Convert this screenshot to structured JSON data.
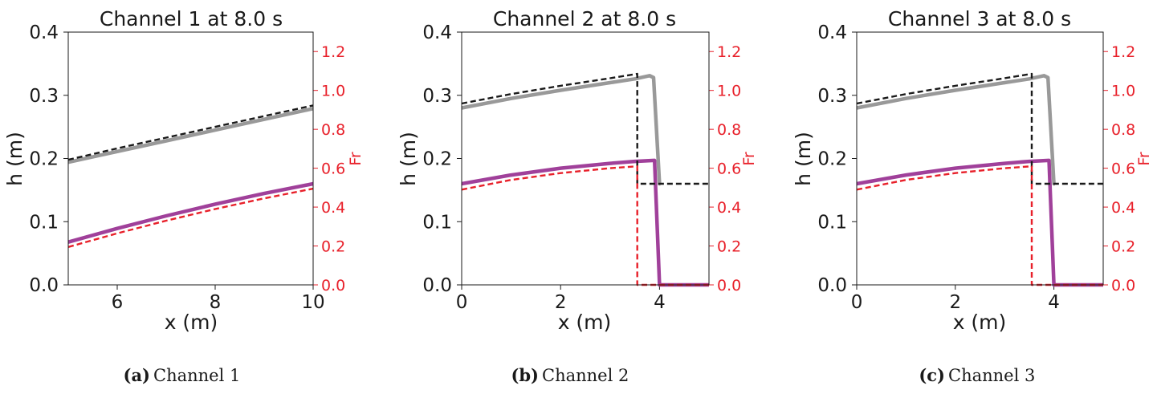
{
  "colors": {
    "h_sim": "#999999",
    "h_exact": "#1a1a1a",
    "fr_sim": "#a0409a",
    "fr_exact": "#e8202a",
    "right_axis": "#e8202a"
  },
  "chart_data": [
    {
      "type": "line",
      "title": "Channel 1 at 8.0 s",
      "xlabel": "x (m)",
      "ylabel": "h (m)",
      "y2label": "Fr",
      "xlim": [
        5,
        10
      ],
      "ylim": [
        0,
        0.4
      ],
      "y2lim": [
        0,
        1.3
      ],
      "xticks": [
        6,
        8,
        10
      ],
      "yticks": [
        "0.0",
        "0.1",
        "0.2",
        "0.3",
        "0.4"
      ],
      "y2ticks": [
        "0.0",
        "0.2",
        "0.4",
        "0.6",
        "0.8",
        "1.0",
        "1.2"
      ],
      "caption_tag": "(a)",
      "caption_text": "Channel 1",
      "series": [
        {
          "role": "h_exact",
          "axis": "left",
          "style": "dashed",
          "x": [
            5,
            6,
            7,
            8,
            9,
            10
          ],
          "y": [
            0.198,
            0.216,
            0.233,
            0.25,
            0.267,
            0.284
          ]
        },
        {
          "role": "h_sim",
          "axis": "left",
          "style": "solid",
          "x": [
            5,
            6,
            7,
            8,
            9,
            10
          ],
          "y": [
            0.194,
            0.211,
            0.228,
            0.245,
            0.262,
            0.279
          ]
        },
        {
          "role": "fr_sim",
          "axis": "right",
          "style": "solid",
          "x": [
            5,
            6,
            7,
            8,
            9,
            10
          ],
          "y": [
            0.22,
            0.29,
            0.355,
            0.415,
            0.47,
            0.52
          ]
        },
        {
          "role": "fr_exact",
          "axis": "right",
          "style": "dashed",
          "x": [
            5,
            6,
            7,
            8,
            9,
            10
          ],
          "y": [
            0.195,
            0.265,
            0.33,
            0.39,
            0.445,
            0.495
          ]
        }
      ]
    },
    {
      "type": "line",
      "title": "Channel 2 at 8.0 s",
      "xlabel": "x (m)",
      "ylabel": "h (m)",
      "y2label": "Fr",
      "xlim": [
        0,
        5
      ],
      "ylim": [
        0,
        0.4
      ],
      "y2lim": [
        0,
        1.3
      ],
      "xticks": [
        0,
        2,
        4
      ],
      "yticks": [
        "0.0",
        "0.1",
        "0.2",
        "0.3",
        "0.4"
      ],
      "y2ticks": [
        "0.0",
        "0.2",
        "0.4",
        "0.6",
        "0.8",
        "1.0",
        "1.2"
      ],
      "caption_tag": "(b)",
      "caption_text": "Channel 2",
      "series": [
        {
          "role": "h_exact",
          "axis": "left",
          "style": "dashed",
          "x": [
            0,
            1,
            2,
            3,
            3.55,
            3.55,
            5
          ],
          "y": [
            0.287,
            0.302,
            0.315,
            0.327,
            0.334,
            0.16,
            0.16
          ]
        },
        {
          "role": "h_sim",
          "axis": "left",
          "style": "solid",
          "x": [
            0,
            1,
            2,
            3,
            3.5,
            3.8,
            3.88,
            4.0,
            4.02
          ],
          "y": [
            0.28,
            0.295,
            0.308,
            0.32,
            0.326,
            0.331,
            0.328,
            0.16,
            0.16
          ]
        },
        {
          "role": "fr_sim",
          "axis": "right",
          "style": "solid",
          "x": [
            0,
            1,
            2,
            3,
            3.5,
            3.9,
            4.0,
            5
          ],
          "y": [
            0.52,
            0.565,
            0.6,
            0.625,
            0.635,
            0.64,
            0.0,
            0.0
          ]
        },
        {
          "role": "fr_exact",
          "axis": "right",
          "style": "dashed",
          "x": [
            0,
            1,
            2,
            3,
            3.55,
            3.55,
            5
          ],
          "y": [
            0.49,
            0.54,
            0.575,
            0.6,
            0.61,
            0.0,
            0.0
          ]
        }
      ]
    },
    {
      "type": "line",
      "title": "Channel 3 at 8.0 s",
      "xlabel": "x (m)",
      "ylabel": "h (m)",
      "y2label": "Fr",
      "xlim": [
        0,
        5
      ],
      "ylim": [
        0,
        0.4
      ],
      "y2lim": [
        0,
        1.3
      ],
      "xticks": [
        0,
        2,
        4
      ],
      "yticks": [
        "0.0",
        "0.1",
        "0.2",
        "0.3",
        "0.4"
      ],
      "y2ticks": [
        "0.0",
        "0.2",
        "0.4",
        "0.6",
        "0.8",
        "1.0",
        "1.2"
      ],
      "caption_tag": "(c)",
      "caption_text": "Channel 3",
      "series": [
        {
          "role": "h_exact",
          "axis": "left",
          "style": "dashed",
          "x": [
            0,
            1,
            2,
            3,
            3.55,
            3.55,
            5
          ],
          "y": [
            0.287,
            0.302,
            0.315,
            0.327,
            0.334,
            0.16,
            0.16
          ]
        },
        {
          "role": "h_sim",
          "axis": "left",
          "style": "solid",
          "x": [
            0,
            1,
            2,
            3,
            3.5,
            3.8,
            3.88,
            4.0,
            4.02
          ],
          "y": [
            0.28,
            0.295,
            0.308,
            0.32,
            0.326,
            0.331,
            0.328,
            0.16,
            0.16
          ]
        },
        {
          "role": "fr_sim",
          "axis": "right",
          "style": "solid",
          "x": [
            0,
            1,
            2,
            3,
            3.5,
            3.9,
            4.0,
            5
          ],
          "y": [
            0.52,
            0.565,
            0.6,
            0.625,
            0.635,
            0.64,
            0.0,
            0.0
          ]
        },
        {
          "role": "fr_exact",
          "axis": "right",
          "style": "dashed",
          "x": [
            0,
            1,
            2,
            3,
            3.55,
            3.55,
            5
          ],
          "y": [
            0.49,
            0.54,
            0.575,
            0.6,
            0.61,
            0.0,
            0.0
          ]
        }
      ]
    }
  ]
}
